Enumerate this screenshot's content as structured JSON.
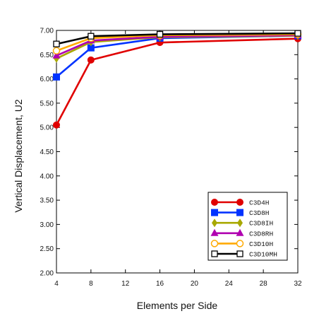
{
  "chart_data": {
    "type": "line",
    "title": "",
    "xlabel": "Elements per Side",
    "ylabel": "Vertical Displacement, U2",
    "xlim": [
      4,
      32
    ],
    "ylim": [
      2.0,
      7.0
    ],
    "xticks": [
      "4",
      "8",
      "12",
      "16",
      "20",
      "24",
      "28",
      "32"
    ],
    "yticks": [
      "2.00",
      "2.50",
      "3.00",
      "3.50",
      "4.00",
      "4.50",
      "5.00",
      "5.50",
      "6.00",
      "6.50",
      "7.00"
    ],
    "grid": false,
    "legend_position": "bottom-right",
    "x": [
      4,
      8,
      16,
      32
    ],
    "series": [
      {
        "name": "C3D4H",
        "color": "#e00000",
        "marker": "circle-filled",
        "values": [
          5.05,
          6.39,
          6.75,
          6.83
        ]
      },
      {
        "name": "C3D8H",
        "color": "#0033ff",
        "marker": "square-filled",
        "values": [
          6.04,
          6.64,
          6.84,
          6.89
        ]
      },
      {
        "name": "C3D8IH",
        "color": "#a8a800",
        "marker": "diamond-filled",
        "values": [
          6.42,
          6.76,
          6.86,
          6.89
        ]
      },
      {
        "name": "C3D8RH",
        "color": "#b000b0",
        "marker": "triangle-filled",
        "values": [
          6.48,
          6.79,
          6.87,
          6.9
        ]
      },
      {
        "name": "C3D10H",
        "color": "#ffaa00",
        "marker": "circle-open",
        "values": [
          6.58,
          6.84,
          6.9,
          6.92
        ]
      },
      {
        "name": "C3D10MH",
        "color": "#000000",
        "marker": "square-open",
        "values": [
          6.72,
          6.88,
          6.92,
          6.94
        ]
      }
    ]
  }
}
